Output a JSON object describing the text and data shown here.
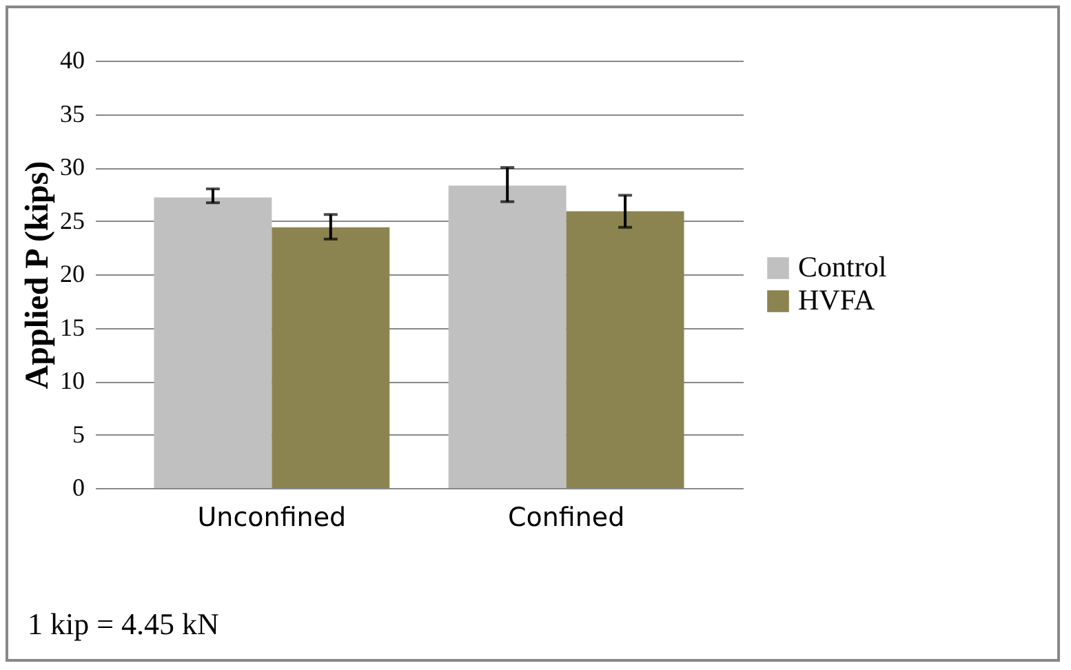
{
  "chart_data": {
    "type": "bar",
    "ylabel": "Applied P (kips)",
    "categories": [
      "Unconfined",
      "Confined"
    ],
    "series": [
      {
        "name": "Control",
        "color": "#c0c0c0",
        "values": [
          27.2,
          28.3
        ],
        "errors": [
          [
            26.7,
            28.0
          ],
          [
            26.8,
            30.0
          ]
        ]
      },
      {
        "name": "HVFA",
        "color": "#8b8450",
        "values": [
          24.4,
          25.9
        ],
        "errors": [
          [
            23.3,
            25.6
          ],
          [
            24.4,
            27.4
          ]
        ]
      }
    ],
    "ylim": [
      0,
      40
    ],
    "yticks": [
      0,
      5,
      10,
      15,
      20,
      25,
      30,
      35,
      40
    ],
    "grid": "y",
    "legend": "right",
    "annotations": [
      "1 kip = 4.45 kN"
    ]
  }
}
